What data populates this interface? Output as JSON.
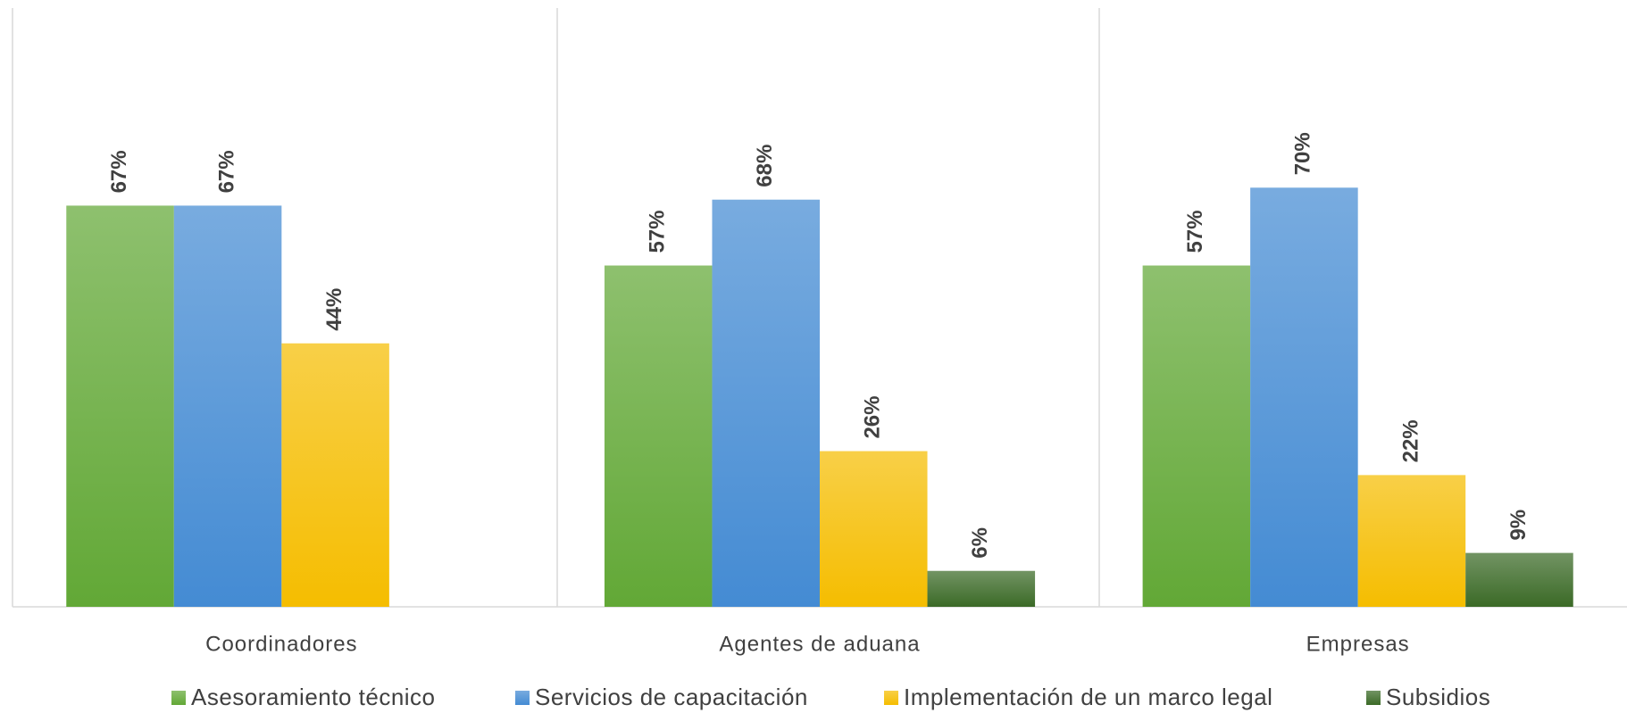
{
  "chart_data": {
    "type": "bar",
    "categories": [
      "Coordinadores",
      "Agentes de aduana",
      "Empresas"
    ],
    "series": [
      {
        "name": "Asesoramiento técnico",
        "color": "#62a836",
        "values": [
          67,
          57,
          57
        ],
        "value_labels": [
          "67%",
          "57%",
          "57%"
        ]
      },
      {
        "name": "Servicios de capacitación",
        "color": "#448bd3",
        "values": [
          67,
          68,
          70
        ],
        "value_labels": [
          "67%",
          "68%",
          "70%"
        ]
      },
      {
        "name": "Implementación de un marco legal",
        "color": "#f5bd00",
        "values": [
          44,
          26,
          22
        ],
        "value_labels": [
          "44%",
          "26%",
          "22%"
        ]
      },
      {
        "name": "Subsidios",
        "color": "#3b6a27",
        "values": [
          0,
          6,
          9
        ],
        "value_labels": [
          null,
          "6%",
          "9%"
        ]
      }
    ],
    "ylim": [
      0,
      100
    ],
    "legend": "bottom"
  }
}
